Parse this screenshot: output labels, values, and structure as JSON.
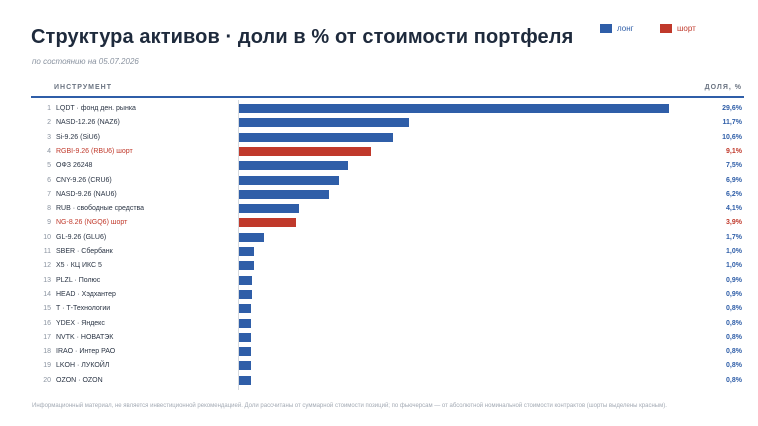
{
  "title": "Структура активов · доли в % от стоимости портфеля",
  "subtitle": "по состоянию на 05.07.2026",
  "legend": {
    "long": "лонг",
    "short": "шорт"
  },
  "header": {
    "instrument": "ИНСТРУМЕНТ",
    "share": "ДОЛЯ, %"
  },
  "colors": {
    "long": "#2f5ea8",
    "short": "#c0392b"
  },
  "footnote": "Информационный материал, не является инвестиционной рекомендацией. Доли рассчитаны от суммарной стоимости позиций; по фьючерсам — от абсолютной номинальной стоимости контрактов (шорты выделены красным).",
  "chart_data": {
    "type": "bar",
    "orientation": "horizontal",
    "xlim": [
      0,
      30
    ],
    "grid": false,
    "legend_position": "top-right",
    "items": [
      {
        "rank": "1",
        "label": "LQDT · фонд ден. рынка",
        "value": 29.6,
        "value_label": "29,6%",
        "side": "long"
      },
      {
        "rank": "2",
        "label": "NASD-12.26 (NAZ6)",
        "value": 11.7,
        "value_label": "11,7%",
        "side": "long"
      },
      {
        "rank": "3",
        "label": "Si-9.26 (SiU6)",
        "value": 10.6,
        "value_label": "10,6%",
        "side": "long"
      },
      {
        "rank": "4",
        "label": "RGBI-9.26 (RBU6) шорт",
        "value": 9.1,
        "value_label": "9,1%",
        "side": "short"
      },
      {
        "rank": "5",
        "label": "ОФЗ 26248",
        "value": 7.5,
        "value_label": "7,5%",
        "side": "long"
      },
      {
        "rank": "6",
        "label": "CNY-9.26 (CRU6)",
        "value": 6.9,
        "value_label": "6,9%",
        "side": "long"
      },
      {
        "rank": "7",
        "label": "NASD-9.26 (NAU6)",
        "value": 6.2,
        "value_label": "6,2%",
        "side": "long"
      },
      {
        "rank": "8",
        "label": "RUB · свободные средства",
        "value": 4.1,
        "value_label": "4,1%",
        "side": "long"
      },
      {
        "rank": "9",
        "label": "NG-8.26 (NGQ6) шорт",
        "value": 3.9,
        "value_label": "3,9%",
        "side": "short"
      },
      {
        "rank": "10",
        "label": "GL-9.26 (GLU6)",
        "value": 1.7,
        "value_label": "1,7%",
        "side": "long"
      },
      {
        "rank": "11",
        "label": "SBER · Сбербанк",
        "value": 1.0,
        "value_label": "1,0%",
        "side": "long"
      },
      {
        "rank": "12",
        "label": "X5 · КЦ ИКС 5",
        "value": 1.0,
        "value_label": "1,0%",
        "side": "long"
      },
      {
        "rank": "13",
        "label": "PLZL · Полюс",
        "value": 0.9,
        "value_label": "0,9%",
        "side": "long"
      },
      {
        "rank": "14",
        "label": "HEAD · Хэдхантер",
        "value": 0.9,
        "value_label": "0,9%",
        "side": "long"
      },
      {
        "rank": "15",
        "label": "T · Т-Технологии",
        "value": 0.8,
        "value_label": "0,8%",
        "side": "long"
      },
      {
        "rank": "16",
        "label": "YDEX · Яндекс",
        "value": 0.8,
        "value_label": "0,8%",
        "side": "long"
      },
      {
        "rank": "17",
        "label": "NVTK · НОВАТЭК",
        "value": 0.8,
        "value_label": "0,8%",
        "side": "long"
      },
      {
        "rank": "18",
        "label": "IRAO · Интер РАО",
        "value": 0.8,
        "value_label": "0,8%",
        "side": "long"
      },
      {
        "rank": "19",
        "label": "LKOH · ЛУКОЙЛ",
        "value": 0.8,
        "value_label": "0,8%",
        "side": "long"
      },
      {
        "rank": "20",
        "label": "OZON · OZON",
        "value": 0.8,
        "value_label": "0,8%",
        "side": "long"
      }
    ]
  }
}
